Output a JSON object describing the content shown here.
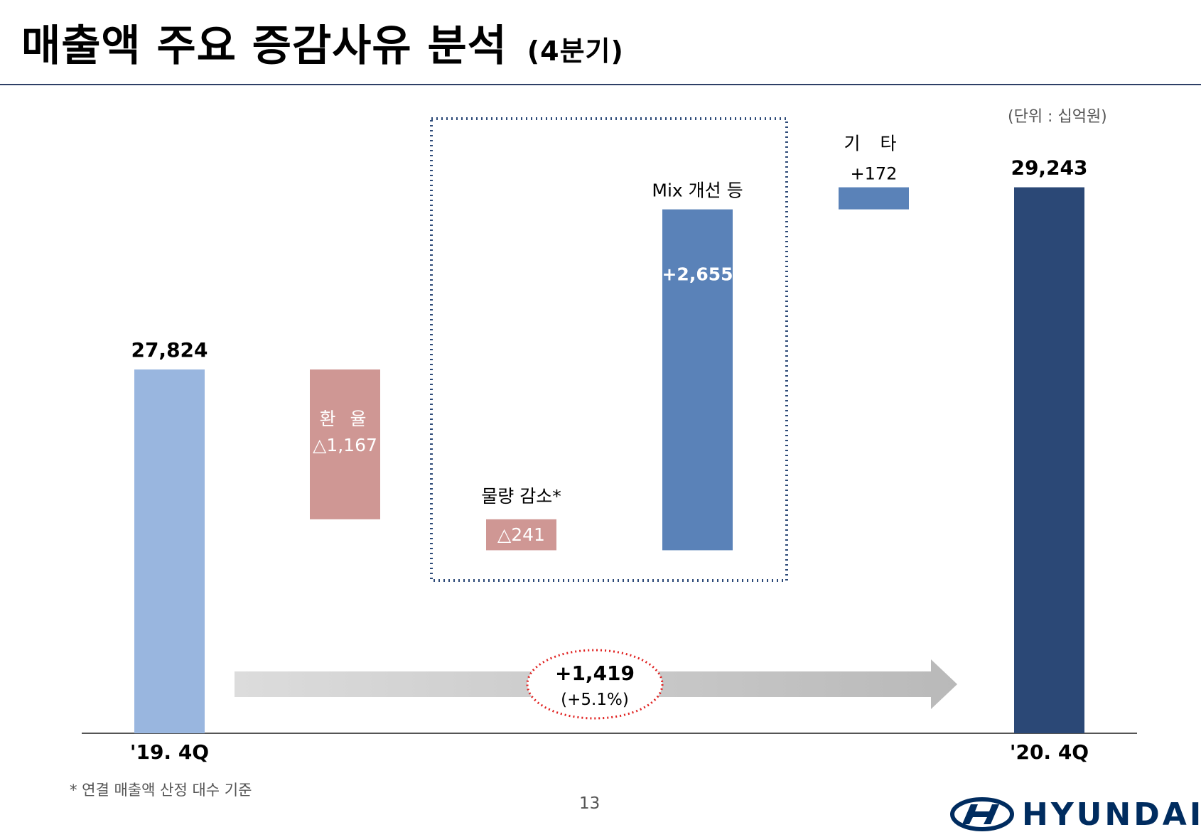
{
  "header": {
    "title": "매출액 주요 증감사유 분석",
    "subtitle": "(4분기)",
    "unit": "(단위 : 십억원)"
  },
  "chart_data": {
    "type": "waterfall",
    "unit": "십억원",
    "steps": [
      {
        "label": "'19. 4Q",
        "value": 27824,
        "value_label": "27,824",
        "kind": "total",
        "color": "#99b6df"
      },
      {
        "label": "환 율",
        "value": -1167,
        "value_label": "△1,167",
        "kind": "delta",
        "color": "#cf9794"
      },
      {
        "label": "물량 감소*",
        "value": -241,
        "value_label": "△241",
        "kind": "delta",
        "color": "#cf9794"
      },
      {
        "label": "Mix 개선 등",
        "value": 2655,
        "value_label": "+2,655",
        "kind": "delta",
        "color": "#5a82b8"
      },
      {
        "label": "기 타",
        "value": 172,
        "value_label": "+172",
        "kind": "delta",
        "color": "#5a82b8"
      },
      {
        "label": "'20. 4Q",
        "value": 29243,
        "value_label": "29,243",
        "kind": "total",
        "color": "#2b4876"
      }
    ],
    "change": {
      "value_label": "+1,419",
      "percent_label": "(+5.1%)"
    }
  },
  "footnote": "* 연결 매출액 산정 대수 기준",
  "page_number": "13",
  "logo": {
    "text": "HYUNDAI",
    "color": "#002c5f"
  }
}
